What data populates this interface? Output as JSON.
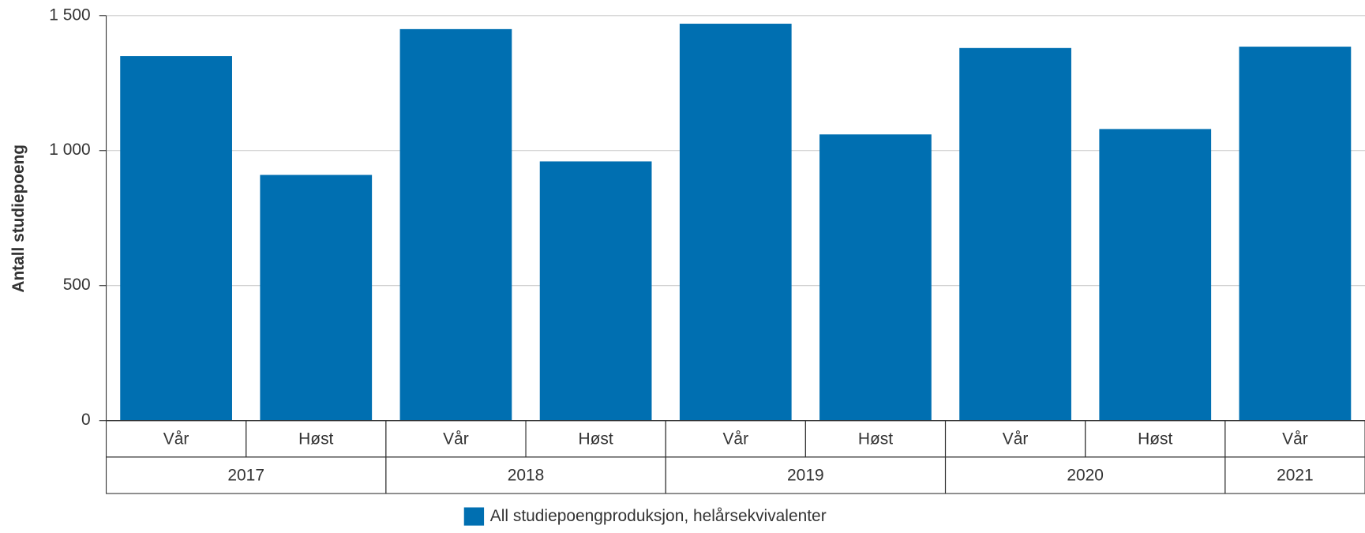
{
  "chart_data": {
    "type": "bar",
    "y_label": "Antall studiepoeng",
    "groups": [
      {
        "name": "2017",
        "categories": [
          "Vår",
          "Høst"
        ]
      },
      {
        "name": "2018",
        "categories": [
          "Vår",
          "Høst"
        ]
      },
      {
        "name": "2019",
        "categories": [
          "Vår",
          "Høst"
        ]
      },
      {
        "name": "2020",
        "categories": [
          "Vår",
          "Høst"
        ]
      },
      {
        "name": "2021",
        "categories": [
          "Vår"
        ]
      }
    ],
    "series": [
      {
        "name": "All studiepoengproduksjon, helårsekvivalenter",
        "color": "#006fb1",
        "values": [
          1350,
          910,
          1450,
          960,
          1470,
          1060,
          1380,
          1080,
          1385
        ]
      }
    ],
    "ylim": [
      0,
      1500
    ],
    "yticks": [
      0,
      500,
      {
        "value": 1000,
        "label": "1 000"
      },
      {
        "value": 1500,
        "label": "1 500"
      }
    ],
    "grid": true
  }
}
